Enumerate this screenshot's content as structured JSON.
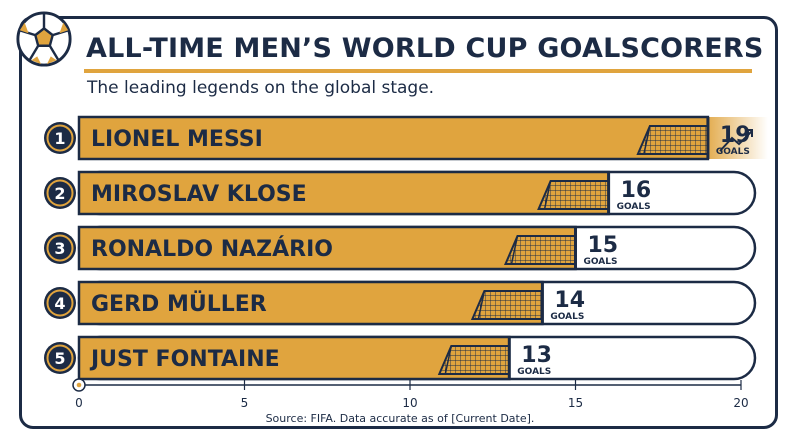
{
  "title": "ALL-TIME MEN’S WORLD CUP GOALSCORERS",
  "subtitle": "The leading legends on the global stage.",
  "source": "Source: FIFA. Data accurate as of [Current Date].",
  "colors": {
    "navy": "#1c2b45",
    "gold": "#e0a43e",
    "white": "#ffffff"
  },
  "icons": {
    "logo": "soccer-ball-icon",
    "goal": "goal-net-icon",
    "trend": "trend-up-icon",
    "axis_origin": "soccer-ball-icon"
  },
  "chart_data": {
    "type": "bar",
    "orientation": "horizontal",
    "title": "ALL-TIME MEN’S WORLD CUP GOALSCORERS",
    "subtitle": "The leading legends on the global stage.",
    "categories": [
      "LIONEL MESSI",
      "MIROSLAV KLOSE",
      "RONALDO NAZÁRIO",
      "GERD MÜLLER",
      "JUST FONTAINE"
    ],
    "ranks": [
      "1",
      "2",
      "3",
      "4",
      "5"
    ],
    "values": [
      19,
      16,
      15,
      14,
      13
    ],
    "value_unit": "GOALS",
    "xlim": [
      0,
      20
    ],
    "xticks": [
      0,
      5,
      10,
      15,
      20
    ],
    "grid": false,
    "legend": "none"
  }
}
